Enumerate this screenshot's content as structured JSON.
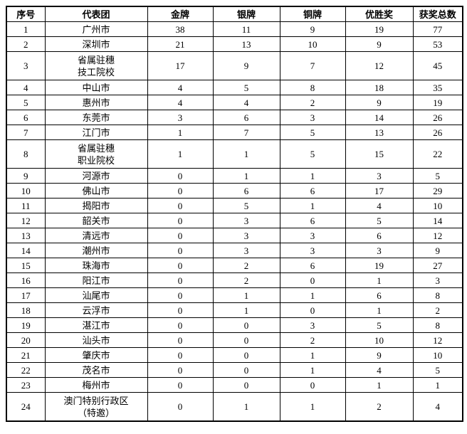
{
  "table": {
    "columns": [
      "序号",
      "代表团",
      "金牌",
      "银牌",
      "铜牌",
      "优胜奖",
      "获奖总数"
    ],
    "rows": [
      {
        "index": 1,
        "delegation": "广州市",
        "gold": 38,
        "silver": 11,
        "bronze": 9,
        "merit": 19,
        "total": 77
      },
      {
        "index": 2,
        "delegation": "深圳市",
        "gold": 21,
        "silver": 13,
        "bronze": 10,
        "merit": 9,
        "total": 53
      },
      {
        "index": 3,
        "delegation": "省属驻穗\n技工院校",
        "gold": 17,
        "silver": 9,
        "bronze": 7,
        "merit": 12,
        "total": 45
      },
      {
        "index": 4,
        "delegation": "中山市",
        "gold": 4,
        "silver": 5,
        "bronze": 8,
        "merit": 18,
        "total": 35
      },
      {
        "index": 5,
        "delegation": "惠州市",
        "gold": 4,
        "silver": 4,
        "bronze": 2,
        "merit": 9,
        "total": 19
      },
      {
        "index": 6,
        "delegation": "东莞市",
        "gold": 3,
        "silver": 6,
        "bronze": 3,
        "merit": 14,
        "total": 26
      },
      {
        "index": 7,
        "delegation": "江门市",
        "gold": 1,
        "silver": 7,
        "bronze": 5,
        "merit": 13,
        "total": 26
      },
      {
        "index": 8,
        "delegation": "省属驻穗\n职业院校",
        "gold": 1,
        "silver": 1,
        "bronze": 5,
        "merit": 15,
        "total": 22
      },
      {
        "index": 9,
        "delegation": "河源市",
        "gold": 0,
        "silver": 1,
        "bronze": 1,
        "merit": 3,
        "total": 5
      },
      {
        "index": 10,
        "delegation": "佛山市",
        "gold": 0,
        "silver": 6,
        "bronze": 6,
        "merit": 17,
        "total": 29
      },
      {
        "index": 11,
        "delegation": "揭阳市",
        "gold": 0,
        "silver": 5,
        "bronze": 1,
        "merit": 4,
        "total": 10
      },
      {
        "index": 12,
        "delegation": "韶关市",
        "gold": 0,
        "silver": 3,
        "bronze": 6,
        "merit": 5,
        "total": 14
      },
      {
        "index": 13,
        "delegation": "清远市",
        "gold": 0,
        "silver": 3,
        "bronze": 3,
        "merit": 6,
        "total": 12
      },
      {
        "index": 14,
        "delegation": "潮州市",
        "gold": 0,
        "silver": 3,
        "bronze": 3,
        "merit": 3,
        "total": 9
      },
      {
        "index": 15,
        "delegation": "珠海市",
        "gold": 0,
        "silver": 2,
        "bronze": 6,
        "merit": 19,
        "total": 27
      },
      {
        "index": 16,
        "delegation": "阳江市",
        "gold": 0,
        "silver": 2,
        "bronze": 0,
        "merit": 1,
        "total": 3
      },
      {
        "index": 17,
        "delegation": "汕尾市",
        "gold": 0,
        "silver": 1,
        "bronze": 1,
        "merit": 6,
        "total": 8
      },
      {
        "index": 18,
        "delegation": "云浮市",
        "gold": 0,
        "silver": 1,
        "bronze": 0,
        "merit": 1,
        "total": 2
      },
      {
        "index": 19,
        "delegation": "湛江市",
        "gold": 0,
        "silver": 0,
        "bronze": 3,
        "merit": 5,
        "total": 8
      },
      {
        "index": 20,
        "delegation": "汕头市",
        "gold": 0,
        "silver": 0,
        "bronze": 2,
        "merit": 10,
        "total": 12
      },
      {
        "index": 21,
        "delegation": "肇庆市",
        "gold": 0,
        "silver": 0,
        "bronze": 1,
        "merit": 9,
        "total": 10
      },
      {
        "index": 22,
        "delegation": "茂名市",
        "gold": 0,
        "silver": 0,
        "bronze": 1,
        "merit": 4,
        "total": 5
      },
      {
        "index": 23,
        "delegation": "梅州市",
        "gold": 0,
        "silver": 0,
        "bronze": 0,
        "merit": 1,
        "total": 1
      },
      {
        "index": 24,
        "delegation": "澳门特别行政区\n（特邀）",
        "gold": 0,
        "silver": 1,
        "bronze": 1,
        "merit": 2,
        "total": 4
      }
    ]
  }
}
